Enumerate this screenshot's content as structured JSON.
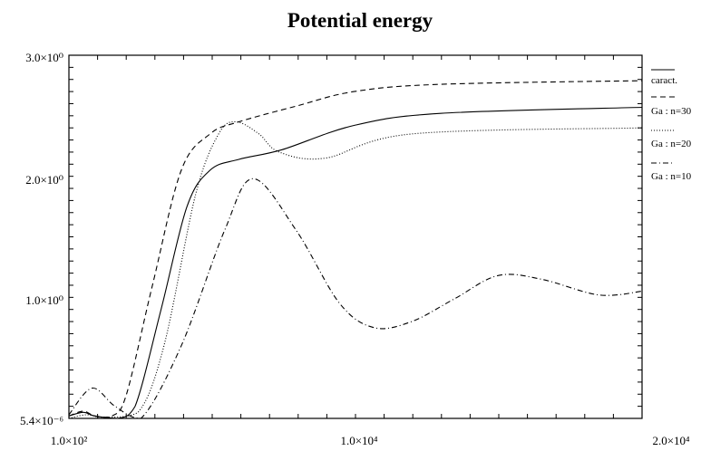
{
  "chart_data": {
    "type": "line",
    "title": "Potential energy",
    "xlabel": "",
    "ylabel": "",
    "x_tick_labels": [
      "1.0×10²",
      "1.0×10⁴",
      "2.0×10⁴"
    ],
    "y_tick_labels": [
      "5.4×10⁻⁶",
      "1.0×10⁰",
      "2.0×10⁰",
      "3.0×10⁰"
    ],
    "xlim": [
      100,
      20000
    ],
    "ylim": [
      5.4e-06,
      3.0
    ],
    "grid": false,
    "legend_position": "right",
    "series": [
      {
        "name": "caract.",
        "style": "solid",
        "points": [
          [
            100,
            0.02
          ],
          [
            600,
            0.05
          ],
          [
            1000,
            0.02
          ],
          [
            1800,
            0.0
          ],
          [
            2400,
            0.1
          ],
          [
            3300,
            0.9
          ],
          [
            4200,
            1.75
          ],
          [
            5000,
            2.05
          ],
          [
            6000,
            2.14
          ],
          [
            7500,
            2.22
          ],
          [
            10000,
            2.42
          ],
          [
            13000,
            2.52
          ],
          [
            20000,
            2.57
          ]
        ]
      },
      {
        "name": "Ga : n=30",
        "style": "dashed",
        "points": [
          [
            100,
            0.02
          ],
          [
            600,
            0.06
          ],
          [
            1000,
            0.02
          ],
          [
            1600,
            0.02
          ],
          [
            2100,
            0.2
          ],
          [
            3000,
            1.1
          ],
          [
            4000,
            2.05
          ],
          [
            5000,
            2.35
          ],
          [
            6000,
            2.45
          ],
          [
            8000,
            2.58
          ],
          [
            10000,
            2.7
          ],
          [
            13000,
            2.76
          ],
          [
            20000,
            2.79
          ]
        ]
      },
      {
        "name": "Ga : n=20",
        "style": "dotted",
        "points": [
          [
            100,
            0.0
          ],
          [
            700,
            0.03
          ],
          [
            1300,
            0.01
          ],
          [
            2500,
            0.05
          ],
          [
            3400,
            0.6
          ],
          [
            4500,
            1.85
          ],
          [
            5300,
            2.35
          ],
          [
            5900,
            2.45
          ],
          [
            6700,
            2.35
          ],
          [
            7400,
            2.2
          ],
          [
            9000,
            2.15
          ],
          [
            12000,
            2.35
          ],
          [
            20000,
            2.4
          ]
        ]
      },
      {
        "name": "Ga : n=10",
        "style": "dashdot",
        "points": [
          [
            100,
            0.03
          ],
          [
            900,
            0.25
          ],
          [
            1700,
            0.1
          ],
          [
            2600,
            0.0
          ],
          [
            4000,
            0.6
          ],
          [
            5500,
            1.55
          ],
          [
            6500,
            1.98
          ],
          [
            8000,
            1.55
          ],
          [
            9500,
            0.95
          ],
          [
            10700,
            0.75
          ],
          [
            12000,
            0.8
          ],
          [
            13500,
            0.99
          ],
          [
            15000,
            1.18
          ],
          [
            16500,
            1.15
          ],
          [
            18500,
            1.02
          ],
          [
            20000,
            1.05
          ]
        ]
      }
    ],
    "line_color": "#000000"
  }
}
